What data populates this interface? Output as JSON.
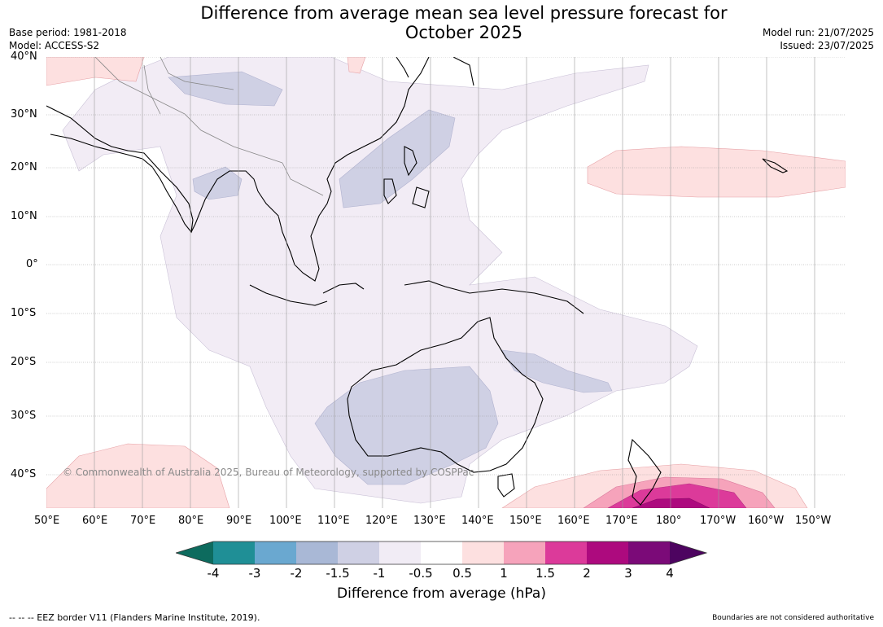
{
  "title_line1": "Difference from average mean sea level pressure forecast for",
  "title_line2": "October 2025",
  "base_period": "Base period: 1981-2018",
  "model": "Model: ACCESS-S2",
  "model_run": "Model run: 21/07/2025",
  "issued": "Issued: 23/07/2025",
  "lat_labels": [
    "40°N",
    "30°N",
    "20°N",
    "10°N",
    "0°",
    "10°S",
    "20°S",
    "30°S",
    "40°S"
  ],
  "lon_labels": [
    "50°E",
    "60°E",
    "70°E",
    "80°E",
    "90°E",
    "100°E",
    "110°E",
    "120°E",
    "130°E",
    "140°E",
    "150°E",
    "160°E",
    "170°E",
    "180°",
    "170°W",
    "160°W",
    "150°W"
  ],
  "copyright": "© Commonwealth of Australia 2025, Bureau of Meteorology, supported by COSPPac",
  "colorbar": {
    "title": "Difference from average (hPa)",
    "ticks": [
      "-4",
      "-3",
      "-2",
      "-1.5",
      "-1",
      "-0.5",
      "0.5",
      "1",
      "1.5",
      "2",
      "3",
      "4"
    ],
    "colors": [
      "#0d6b5e",
      "#1f8f96",
      "#6aa8d0",
      "#a9b8d6",
      "#cfd0e4",
      "#f1ecf5",
      "#ffffff",
      "#fde0e0",
      "#f6a3bb",
      "#dc3a9a",
      "#ad0a7e",
      "#7b0a78",
      "#4d0460"
    ]
  },
  "footer_left": "--  --  -- EEZ border V11 (Flanders Marine Institute, 2019).",
  "footer_right": "Boundaries are not considered authoritative"
}
